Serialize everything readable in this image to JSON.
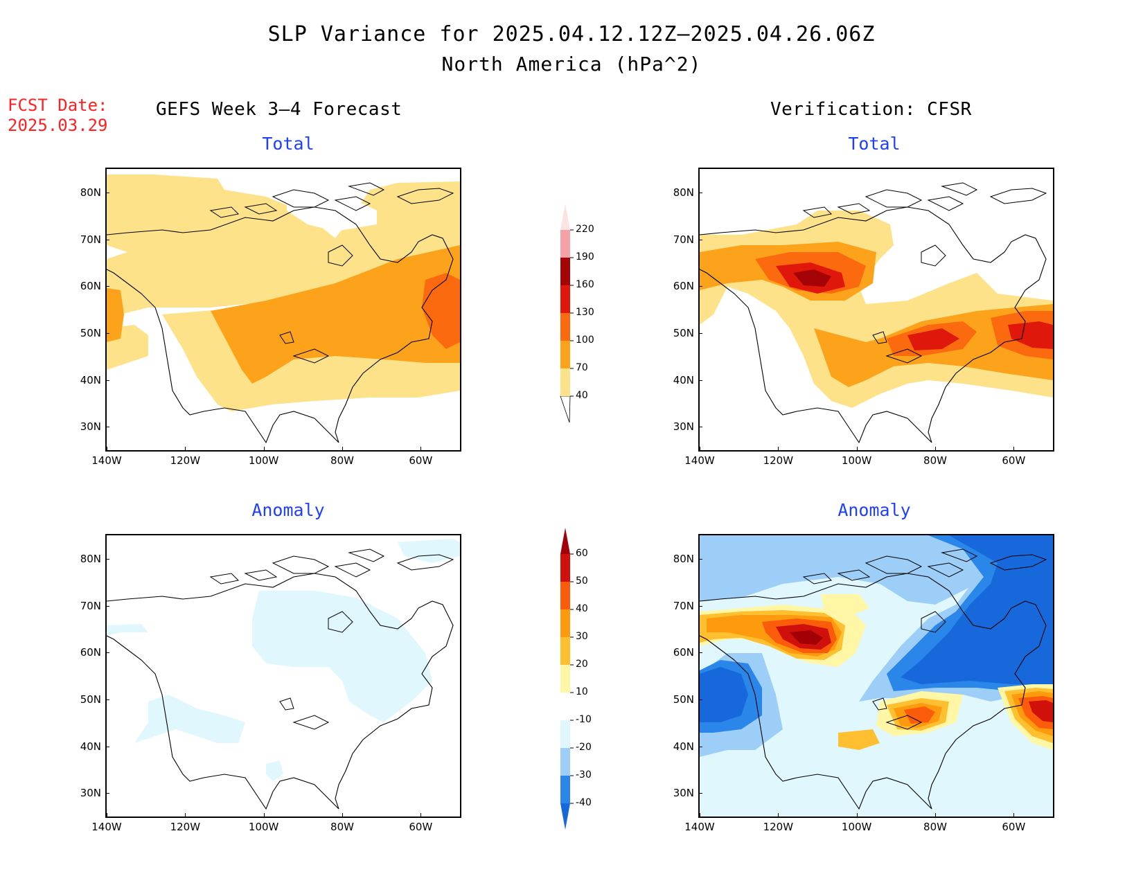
{
  "title": {
    "line1": "SLP Variance for 2025.04.12.12Z—2025.04.26.06Z",
    "line2": "North America (hPa^2)"
  },
  "fcst": {
    "label": "FCST Date:",
    "date": "2025.03.29"
  },
  "columns": {
    "left": "GEFS Week 3—4 Forecast",
    "right": "Verification: CFSR"
  },
  "panels": {
    "total_title": "Total",
    "anomaly_title": "Anomaly"
  },
  "axes": {
    "lat_labels": [
      "80N",
      "70N",
      "60N",
      "50N",
      "40N",
      "30N"
    ],
    "lon_labels": [
      "140W",
      "120W",
      "100W",
      "80W",
      "60W"
    ],
    "lat_values": [
      80,
      70,
      60,
      50,
      40,
      30
    ],
    "lon_values": [
      -140,
      -120,
      -100,
      -80,
      -60
    ],
    "lat_range": [
      25,
      85
    ],
    "lon_range": [
      -140,
      -50
    ]
  },
  "colorbars": {
    "total": {
      "levels": [
        "40",
        "70",
        "100",
        "130",
        "160",
        "190",
        "220"
      ],
      "colors": [
        "#fde28a",
        "#fda31b",
        "#fb6a0e",
        "#e0180c",
        "#a50407",
        "#f5a2a7",
        "#fde2e2"
      ]
    },
    "anomaly": {
      "levels": [
        "-40",
        "-30",
        "-20",
        "-10",
        "10",
        "20",
        "30",
        "40",
        "50",
        "60"
      ],
      "colors": [
        "#1768db",
        "#2a86e8",
        "#9dcef7",
        "#e0f7fd",
        "#ffffff",
        "#fff7a5",
        "#fec030",
        "#fd9a0e",
        "#fb5c0b",
        "#d0100b",
        "#a00006"
      ]
    }
  }
}
